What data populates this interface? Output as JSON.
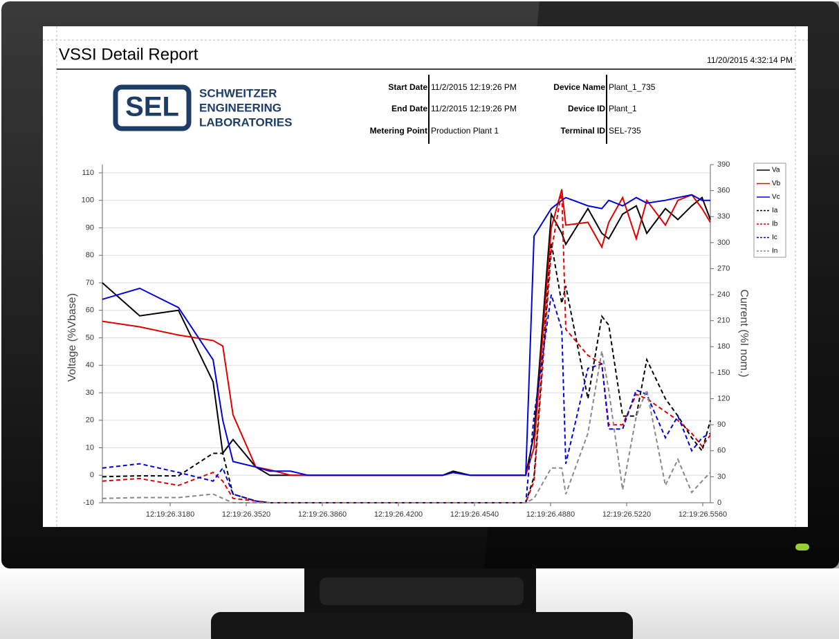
{
  "header": {
    "title": "VSSI Detail Report",
    "report_date": "11/20/2015 4:32:14 PM"
  },
  "logo": {
    "abbrev": "SEL",
    "lines": [
      "SCHWEITZER",
      "ENGINEERING",
      "LABORATORIES"
    ]
  },
  "info": {
    "left": [
      {
        "label": "Start Date",
        "value": "11/2/2015 12:19:26 PM"
      },
      {
        "label": "End Date",
        "value": "11/2/2015 12:19:26 PM"
      },
      {
        "label": "Metering Point",
        "value": "Production Plant 1"
      }
    ],
    "right": [
      {
        "label": "Device Name",
        "value": "Plant_1_735"
      },
      {
        "label": "Device ID",
        "value": "Plant_1"
      },
      {
        "label": "Terminal ID",
        "value": "SEL-735"
      }
    ]
  },
  "chart_data": {
    "type": "line",
    "y_label": "Voltage (%Vbase)",
    "y2_label": "Current (%I nom.)",
    "x": [
      0.2877,
      0.3044,
      0.3217,
      0.3372,
      0.3415,
      0.3461,
      0.3563,
      0.3625,
      0.3718,
      0.3795,
      0.4398,
      0.4444,
      0.4521,
      0.4769,
      0.4806,
      0.4883,
      0.493,
      0.4948,
      0.5047,
      0.5109,
      0.514,
      0.5202,
      0.5263,
      0.531,
      0.5393,
      0.5449,
      0.5511,
      0.5557,
      0.5594
    ],
    "xlim": [
      0.2877,
      0.5594
    ],
    "xticks": [
      {
        "value": 0.318,
        "label": "12:19:26.3180"
      },
      {
        "value": 0.352,
        "label": "12:19:26.3520"
      },
      {
        "value": 0.386,
        "label": "12:19:26.3860"
      },
      {
        "value": 0.42,
        "label": "12:19:26.4200"
      },
      {
        "value": 0.454,
        "label": "12:19:26.4540"
      },
      {
        "value": 0.488,
        "label": "12:19:26.4880"
      },
      {
        "value": 0.522,
        "label": "12:19:26.5220"
      },
      {
        "value": 0.556,
        "label": "12:19:26.5560"
      }
    ],
    "ylim": [
      -10,
      113
    ],
    "yticks": [
      -10,
      0,
      10,
      20,
      30,
      40,
      50,
      60,
      70,
      80,
      90,
      100,
      110
    ],
    "y2lim": [
      0,
      390
    ],
    "y2ticks": [
      0,
      30,
      60,
      90,
      120,
      150,
      180,
      210,
      240,
      270,
      300,
      330,
      360,
      390
    ],
    "grid": true,
    "legend": "right",
    "series": [
      {
        "name": "Va",
        "color": "#000000",
        "style": "solid",
        "values": [
          70,
          58,
          60,
          34,
          8,
          13,
          3,
          0,
          0,
          0,
          0,
          1.5,
          0,
          0,
          15,
          95,
          88,
          84,
          97,
          88,
          86,
          95,
          98,
          88,
          97,
          93,
          98,
          101,
          93
        ]
      },
      {
        "name": "Vb",
        "color": "#e00000",
        "style": "solid",
        "values": [
          56,
          54,
          51,
          49,
          47,
          22,
          3,
          2,
          0,
          0,
          0,
          1,
          0,
          0,
          10,
          90,
          104,
          91,
          92,
          83,
          92,
          101,
          86,
          100,
          91,
          100,
          102,
          97,
          92
        ]
      },
      {
        "name": "Vc",
        "color": "#0000e0",
        "style": "solid",
        "values": [
          64,
          68,
          61,
          42,
          20,
          5,
          3,
          1.5,
          1.5,
          0,
          0,
          1,
          0,
          0,
          87,
          97,
          100,
          101,
          98,
          97,
          100,
          98,
          101,
          99,
          100,
          101,
          102,
          100,
          100
        ]
      },
      {
        "name": "Ia",
        "color": "#000000",
        "style": "dashed",
        "axis": "y2",
        "values": [
          30,
          31,
          31,
          57,
          57,
          10,
          2,
          0,
          0,
          0,
          0,
          0,
          0,
          0,
          30,
          300,
          230,
          250,
          120,
          215,
          205,
          100,
          100,
          165,
          120,
          100,
          75,
          60,
          95
        ]
      },
      {
        "name": "Ib",
        "color": "#e00000",
        "style": "dashed",
        "axis": "y2",
        "values": [
          25,
          28,
          20,
          35,
          25,
          5,
          2,
          0,
          0,
          0,
          0,
          0,
          0,
          0,
          25,
          290,
          360,
          200,
          170,
          160,
          90,
          90,
          125,
          120,
          105,
          95,
          80,
          65,
          78
        ]
      },
      {
        "name": "Ic",
        "color": "#0000e0",
        "style": "dashed",
        "axis": "y2",
        "values": [
          40,
          45,
          35,
          25,
          40,
          10,
          2,
          0,
          0,
          0,
          0,
          0,
          0,
          0,
          100,
          240,
          200,
          45,
          155,
          160,
          85,
          85,
          130,
          125,
          75,
          100,
          60,
          75,
          80
        ]
      },
      {
        "name": "In",
        "color": "#888888",
        "style": "dashed",
        "axis": "y2",
        "values": [
          5,
          6,
          6,
          10,
          5,
          0,
          0,
          0,
          0,
          0,
          0,
          0,
          0,
          0,
          5,
          40,
          40,
          10,
          80,
          175,
          130,
          15,
          100,
          130,
          20,
          50,
          12,
          25,
          35
        ]
      }
    ]
  }
}
